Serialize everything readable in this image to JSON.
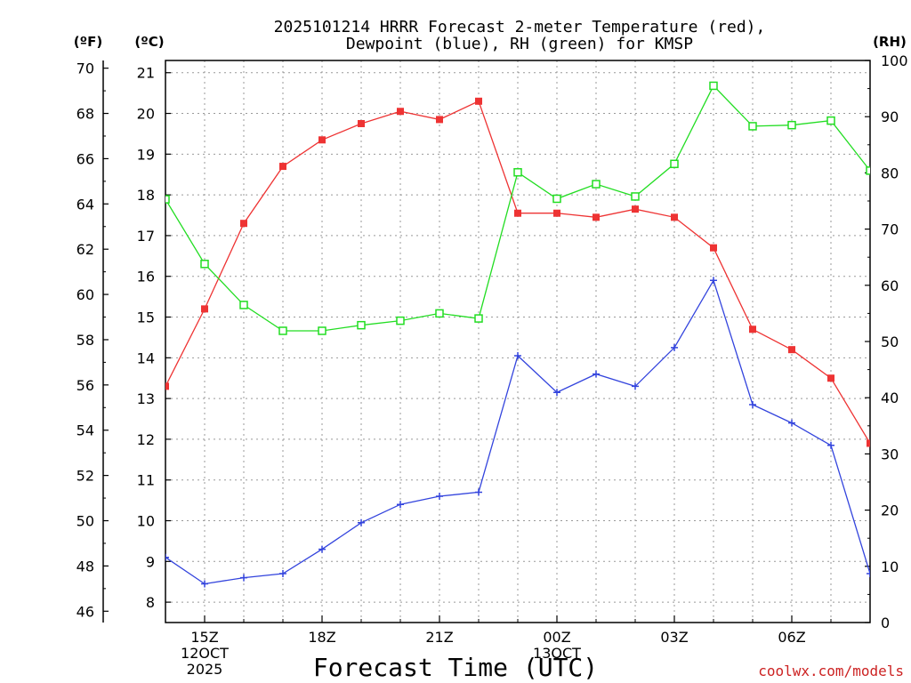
{
  "chart_data": {
    "type": "line",
    "title_line1": "2025101214 HRRR Forecast 2-meter Temperature (red),",
    "title_line2": "Dewpoint (blue), RH (green) for KMSP",
    "xlabel": "Forecast Time (UTC)",
    "watermark": "coolwx.com/models",
    "left_axis_f_label": "(ºF)",
    "left_axis_c_label": "(ºC)",
    "right_axis_label": "(RH)",
    "hours": [
      14,
      15,
      16,
      17,
      18,
      19,
      20,
      21,
      22,
      23,
      24,
      25,
      26,
      27,
      28,
      29,
      30,
      31,
      32
    ],
    "x_ticks": [
      {
        "hour": 15,
        "lines": [
          "15Z",
          "12OCT",
          "2025"
        ]
      },
      {
        "hour": 18,
        "lines": [
          "18Z"
        ]
      },
      {
        "hour": 21,
        "lines": [
          "21Z"
        ]
      },
      {
        "hour": 24,
        "lines": [
          "00Z",
          "13OCT"
        ]
      },
      {
        "hour": 27,
        "lines": [
          "03Z"
        ]
      },
      {
        "hour": 30,
        "lines": [
          "06Z"
        ]
      }
    ],
    "xlim": [
      14,
      32
    ],
    "ylim_c": [
      7.5,
      21.3
    ],
    "ylim_rh": [
      0,
      100
    ],
    "c_ticks": [
      8,
      9,
      10,
      11,
      12,
      13,
      14,
      15,
      16,
      17,
      18,
      19,
      20,
      21
    ],
    "f_ticks": [
      46,
      48,
      50,
      52,
      54,
      56,
      58,
      60,
      62,
      64,
      66,
      68,
      70
    ],
    "rh_ticks": [
      0,
      10,
      20,
      30,
      40,
      50,
      60,
      70,
      80,
      90,
      100
    ],
    "series": [
      {
        "name": "Temperature",
        "unit": "C",
        "color": "#ee3333",
        "marker": "filled-square",
        "values": [
          13.3,
          15.2,
          17.3,
          18.7,
          19.35,
          19.75,
          20.05,
          19.85,
          20.3,
          17.55,
          17.55,
          17.45,
          17.65,
          17.45,
          16.7,
          14.7,
          14.2,
          13.5,
          11.9
        ]
      },
      {
        "name": "Dewpoint",
        "unit": "C",
        "color": "#3344dd",
        "marker": "plus",
        "values": [
          9.1,
          8.45,
          8.6,
          8.7,
          9.3,
          9.95,
          10.4,
          10.6,
          10.7,
          14.05,
          13.15,
          13.6,
          13.3,
          14.25,
          15.9,
          12.85,
          12.4,
          11.85,
          8.7
        ]
      },
      {
        "name": "RH",
        "unit": "%",
        "color": "#22dd22",
        "marker": "open-square",
        "values": [
          75.3,
          63.8,
          56.5,
          51.9,
          51.9,
          52.9,
          53.7,
          55.0,
          54.1,
          80.1,
          75.4,
          78.0,
          75.8,
          81.6,
          95.5,
          88.3,
          88.5,
          89.3,
          80.4
        ]
      }
    ]
  }
}
